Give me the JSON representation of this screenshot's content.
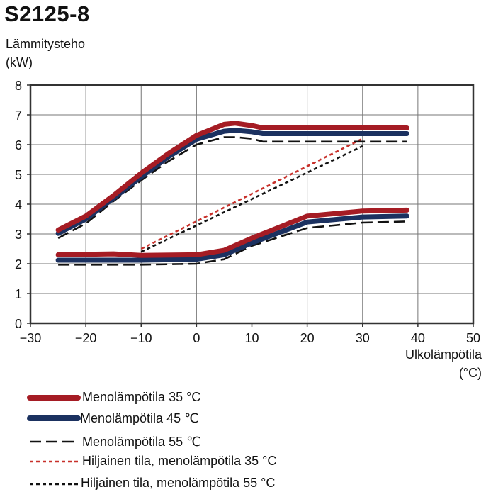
{
  "chart_data": {
    "type": "line",
    "title": "S2125-8",
    "ylabel": [
      "Lämmitysteho",
      "(kW)"
    ],
    "xlabel": [
      "Ulkolämpötila",
      "(°C)"
    ],
    "xlim": [
      -30,
      50
    ],
    "ylim": [
      0,
      8
    ],
    "xticks": [
      "−30",
      "−20",
      "−10",
      "0",
      "10",
      "20",
      "30",
      "40",
      "50"
    ],
    "xtick_values": [
      -30,
      -20,
      -10,
      0,
      10,
      20,
      30,
      40,
      50
    ],
    "yticks": [
      "0",
      "1",
      "2",
      "3",
      "4",
      "5",
      "6",
      "7",
      "8"
    ],
    "ytick_values": [
      0,
      1,
      2,
      3,
      4,
      5,
      6,
      7,
      8
    ],
    "grid": true,
    "legend_position": "bottom",
    "series": [
      {
        "name": "Menolämpötila 35 °C",
        "color": "#a51c24",
        "style": "solid-thick",
        "max": {
          "x": [
            -25,
            -20,
            -15,
            -10,
            -5,
            0,
            5,
            7,
            10,
            12,
            38
          ],
          "y": [
            3.13,
            3.6,
            4.29,
            5.04,
            5.71,
            6.31,
            6.68,
            6.72,
            6.64,
            6.56,
            6.56
          ]
        },
        "min": {
          "x": [
            -25,
            -15,
            -10,
            0,
            5,
            10,
            20,
            30,
            38
          ],
          "y": [
            2.3,
            2.33,
            2.28,
            2.3,
            2.45,
            2.86,
            3.6,
            3.77,
            3.8
          ]
        }
      },
      {
        "name": "Menolämpötila 45 ℃",
        "color": "#1b3160",
        "style": "solid-thick",
        "max": {
          "x": [
            -25,
            -20,
            -15,
            -10,
            -5,
            0,
            5,
            7,
            10,
            12,
            38
          ],
          "y": [
            3.02,
            3.5,
            4.2,
            4.92,
            5.6,
            6.18,
            6.45,
            6.48,
            6.43,
            6.37,
            6.37
          ]
        },
        "min": {
          "x": [
            -25,
            -10,
            0,
            5,
            10,
            20,
            30,
            38
          ],
          "y": [
            2.12,
            2.12,
            2.15,
            2.3,
            2.7,
            3.4,
            3.57,
            3.6
          ]
        }
      },
      {
        "name": "Menolämpötila 55 ℃",
        "color": "#111111",
        "style": "dashed",
        "max": {
          "x": [
            -25,
            -20,
            -15,
            -10,
            -5,
            0,
            5,
            7,
            10,
            12,
            38
          ],
          "y": [
            2.86,
            3.35,
            4.1,
            4.8,
            5.45,
            6.0,
            6.25,
            6.25,
            6.2,
            6.1,
            6.1
          ]
        },
        "min": {
          "x": [
            -25,
            -10,
            0,
            5,
            10,
            20,
            30,
            38
          ],
          "y": [
            1.97,
            1.97,
            2.0,
            2.15,
            2.6,
            3.2,
            3.38,
            3.42
          ]
        }
      },
      {
        "name": "Hiljainen tila, menolämpötila 35 °C",
        "color": "#c8302a",
        "style": "dotted",
        "line": {
          "x": [
            -10,
            30
          ],
          "y": [
            2.5,
            6.2
          ]
        }
      },
      {
        "name": "Hiljainen tila, menolämpötila 55 °C",
        "color": "#111111",
        "style": "dotted",
        "line": {
          "x": [
            -10,
            30
          ],
          "y": [
            2.4,
            5.95
          ]
        }
      }
    ]
  }
}
